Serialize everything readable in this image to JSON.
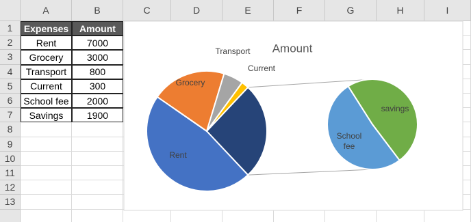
{
  "sheet": {
    "columns": [
      "A",
      "B",
      "C",
      "D",
      "E",
      "F",
      "G",
      "H",
      "I"
    ],
    "rows": [
      1,
      2,
      3,
      4,
      5,
      6,
      7,
      8,
      9,
      10,
      11,
      12,
      13
    ],
    "table": {
      "header": [
        "Expenses",
        "Amount"
      ],
      "rows": [
        [
          "Rent",
          7000
        ],
        [
          "Grocery",
          3000
        ],
        [
          "Transport",
          800
        ],
        [
          "Current",
          300
        ],
        [
          "School fee",
          2000
        ],
        [
          "Savings",
          1900
        ]
      ]
    }
  },
  "chart_data": {
    "type": "pie-of-pie",
    "title": "Amount",
    "categories": [
      "Rent",
      "Grocery",
      "Transport",
      "Current",
      "School fee",
      "savings"
    ],
    "values": [
      7000,
      3000,
      800,
      300,
      2000,
      1900
    ],
    "colors": [
      "#4472c4",
      "#ed7d31",
      "#a5a5a5",
      "#ffc000",
      "#5b9bd5",
      "#70ad47"
    ],
    "second_plot_count": 2,
    "other_color": "#264478"
  }
}
